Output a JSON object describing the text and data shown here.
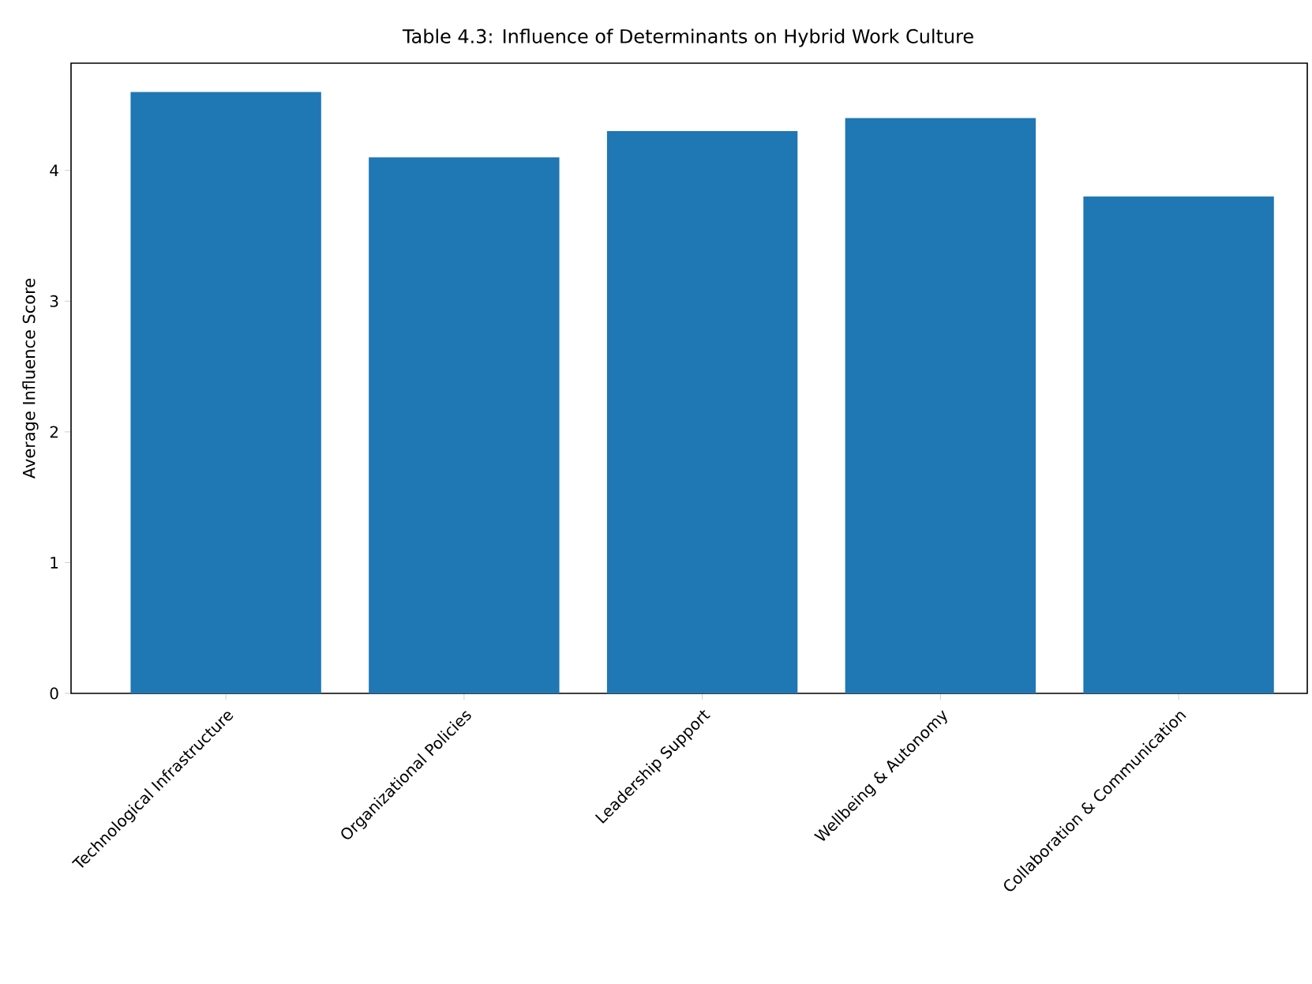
{
  "chart_data": {
    "type": "bar",
    "title": "Table 4.3: Influence of Determinants on Hybrid Work Culture",
    "ylabel": "Average Influence Score",
    "categories": [
      "Technological Infrastructure",
      "Organizational Policies",
      "Leadership Support",
      "Wellbeing & Autonomy",
      "Collaboration & Communication"
    ],
    "values": [
      4.6,
      4.1,
      4.3,
      4.4,
      3.8
    ],
    "color": "#1f77b4",
    "ylim": [
      0,
      4.82
    ],
    "yticks": [
      0,
      1,
      2,
      3,
      4
    ],
    "grid": false
  }
}
